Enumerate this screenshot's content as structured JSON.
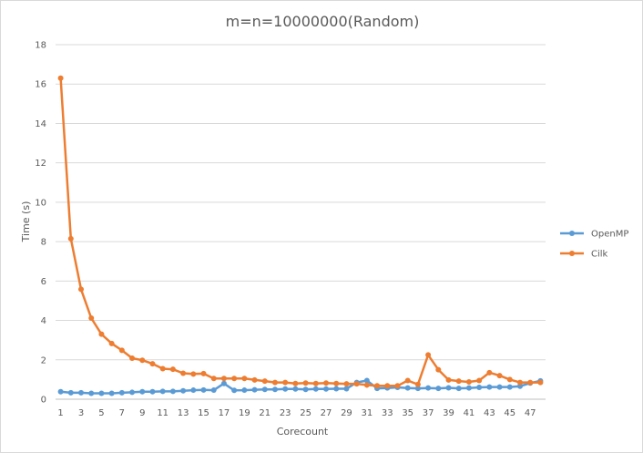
{
  "chart_data": {
    "type": "line",
    "title": "m=n=10000000(Random)",
    "xlabel": "Corecount",
    "ylabel": "Time (s)",
    "ylim": [
      0,
      18
    ],
    "yticks": [
      0,
      2,
      4,
      6,
      8,
      10,
      12,
      14,
      16,
      18
    ],
    "grid": true,
    "legend_position": "right",
    "x": [
      1,
      2,
      3,
      4,
      5,
      6,
      7,
      8,
      9,
      10,
      11,
      12,
      13,
      14,
      15,
      16,
      17,
      18,
      19,
      20,
      21,
      22,
      23,
      24,
      25,
      26,
      27,
      28,
      29,
      30,
      31,
      32,
      33,
      34,
      35,
      36,
      37,
      38,
      39,
      40,
      41,
      42,
      43,
      44,
      45,
      46,
      47,
      48
    ],
    "xtick_labels": [
      1,
      3,
      5,
      7,
      9,
      11,
      13,
      15,
      17,
      19,
      21,
      23,
      25,
      27,
      29,
      31,
      33,
      35,
      37,
      39,
      41,
      43,
      45,
      47
    ],
    "series": [
      {
        "name": "OpenMP",
        "color": "#5b9bd5",
        "values": [
          0.38,
          0.33,
          0.33,
          0.3,
          0.3,
          0.3,
          0.33,
          0.35,
          0.38,
          0.38,
          0.4,
          0.4,
          0.43,
          0.46,
          0.47,
          0.46,
          0.8,
          0.45,
          0.46,
          0.48,
          0.5,
          0.5,
          0.52,
          0.52,
          0.5,
          0.52,
          0.52,
          0.53,
          0.53,
          0.85,
          0.95,
          0.55,
          0.57,
          0.6,
          0.57,
          0.55,
          0.57,
          0.55,
          0.58,
          0.55,
          0.57,
          0.6,
          0.62,
          0.62,
          0.62,
          0.66,
          0.82,
          0.93
        ]
      },
      {
        "name": "Cilk",
        "color": "#ed7d31",
        "values": [
          16.3,
          8.15,
          5.58,
          4.12,
          3.3,
          2.83,
          2.48,
          2.08,
          1.98,
          1.8,
          1.55,
          1.52,
          1.32,
          1.28,
          1.3,
          1.05,
          1.05,
          1.05,
          1.05,
          0.98,
          0.92,
          0.85,
          0.85,
          0.8,
          0.82,
          0.8,
          0.82,
          0.8,
          0.78,
          0.78,
          0.72,
          0.68,
          0.68,
          0.68,
          0.95,
          0.75,
          2.25,
          1.5,
          0.98,
          0.92,
          0.88,
          0.95,
          1.35,
          1.2,
          1.0,
          0.85,
          0.85,
          0.85
        ]
      }
    ]
  }
}
